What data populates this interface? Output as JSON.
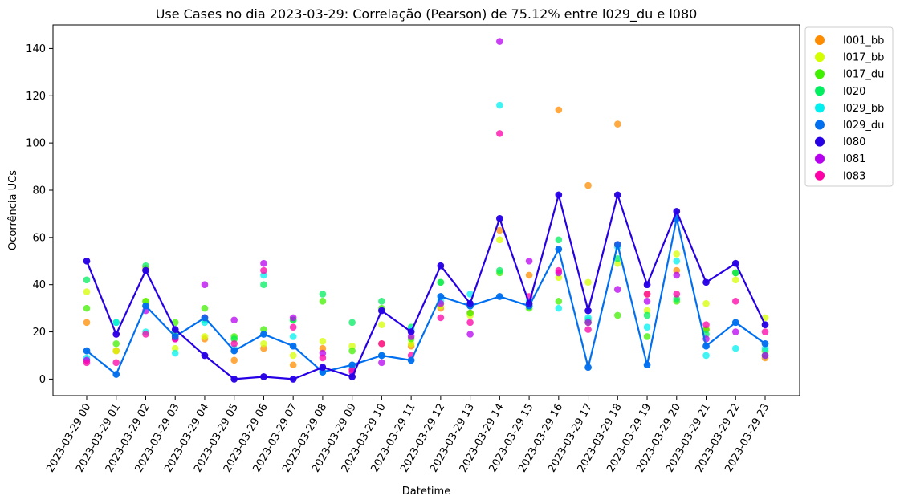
{
  "chart_data": {
    "type": "scatter",
    "title": "Use Cases no dia 2023-03-29: Correlação (Pearson) de 75.12% entre l029_du e l080",
    "xlabel": "Datetime",
    "ylabel": "Ocorrência UCs",
    "ylim": [
      -7,
      150
    ],
    "yticks": [
      0,
      20,
      40,
      60,
      80,
      100,
      120,
      140
    ],
    "categories": [
      "2023-03-29 00",
      "2023-03-29 01",
      "2023-03-29 02",
      "2023-03-29 03",
      "2023-03-29 04",
      "2023-03-29 05",
      "2023-03-29 06",
      "2023-03-29 07",
      "2023-03-29 08",
      "2023-03-29 09",
      "2023-03-29 10",
      "2023-03-29 11",
      "2023-03-29 12",
      "2023-03-29 13",
      "2023-03-29 14",
      "2023-03-29 15",
      "2023-03-29 16",
      "2023-03-29 17",
      "2023-03-29 18",
      "2023-03-29 19",
      "2023-03-29 20",
      "2023-03-29 21",
      "2023-03-29 22",
      "2023-03-29 23"
    ],
    "legend_position": "outside-top-right",
    "grid": false,
    "highlighted_lines": [
      "l029_du",
      "l080"
    ],
    "series": [
      {
        "name": "l001_bb",
        "color": "#ff8c00",
        "values": [
          24,
          12,
          47,
          18,
          17,
          8,
          13,
          6,
          13,
          4,
          15,
          14,
          30,
          28,
          63,
          44,
          114,
          82,
          108,
          36,
          46,
          21,
          45,
          9
        ]
      },
      {
        "name": "l017_bb",
        "color": "#d4ff00",
        "values": [
          37,
          12,
          33,
          13,
          18,
          17,
          15,
          10,
          16,
          14,
          23,
          15,
          31,
          27,
          59,
          31,
          43,
          41,
          49,
          29,
          53,
          32,
          42,
          26
        ]
      },
      {
        "name": "l017_du",
        "color": "#40f000",
        "values": [
          30,
          15,
          33,
          24,
          30,
          18,
          21,
          25,
          33,
          12,
          30,
          17,
          41,
          28,
          45,
          30,
          33,
          24,
          27,
          18,
          33,
          21,
          45,
          12
        ]
      },
      {
        "name": "l020",
        "color": "#00ee60",
        "values": [
          42,
          24,
          48,
          20,
          25,
          17,
          40,
          25,
          36,
          24,
          33,
          22,
          41,
          31,
          46,
          31,
          59,
          25,
          51,
          27,
          34,
          19,
          45,
          10
        ]
      },
      {
        "name": "l029_bb",
        "color": "#00f0f0",
        "values": [
          9,
          24,
          20,
          11,
          24,
          13,
          44,
          18,
          3,
          5,
          10,
          21,
          33,
          36,
          116,
          33,
          30,
          26,
          56,
          22,
          50,
          10,
          13,
          13
        ]
      },
      {
        "name": "l029_du",
        "color": "#0070f0",
        "values": [
          12,
          2,
          31,
          18,
          26,
          12,
          19,
          14,
          3,
          6,
          10,
          8,
          35,
          31,
          35,
          31,
          55,
          5,
          57,
          6,
          68,
          14,
          24,
          15
        ]
      },
      {
        "name": "l080",
        "color": "#2800e6",
        "values": [
          50,
          19,
          46,
          21,
          10,
          0,
          1,
          0,
          5,
          1,
          29,
          20,
          48,
          32,
          68,
          32,
          78,
          29,
          78,
          40,
          71,
          41,
          49,
          23
        ]
      },
      {
        "name": "l081",
        "color": "#b800f0",
        "values": [
          8,
          19,
          29,
          17,
          40,
          25,
          49,
          26,
          11,
          3,
          7,
          18,
          32,
          19,
          143,
          50,
          45,
          24,
          38,
          33,
          44,
          17,
          20,
          10
        ]
      },
      {
        "name": "l083",
        "color": "#ff00a8",
        "values": [
          7,
          7,
          19,
          17,
          26,
          15,
          46,
          22,
          9,
          4,
          15,
          10,
          26,
          24,
          104,
          35,
          46,
          21,
          57,
          36,
          36,
          23,
          33,
          20
        ]
      }
    ]
  }
}
